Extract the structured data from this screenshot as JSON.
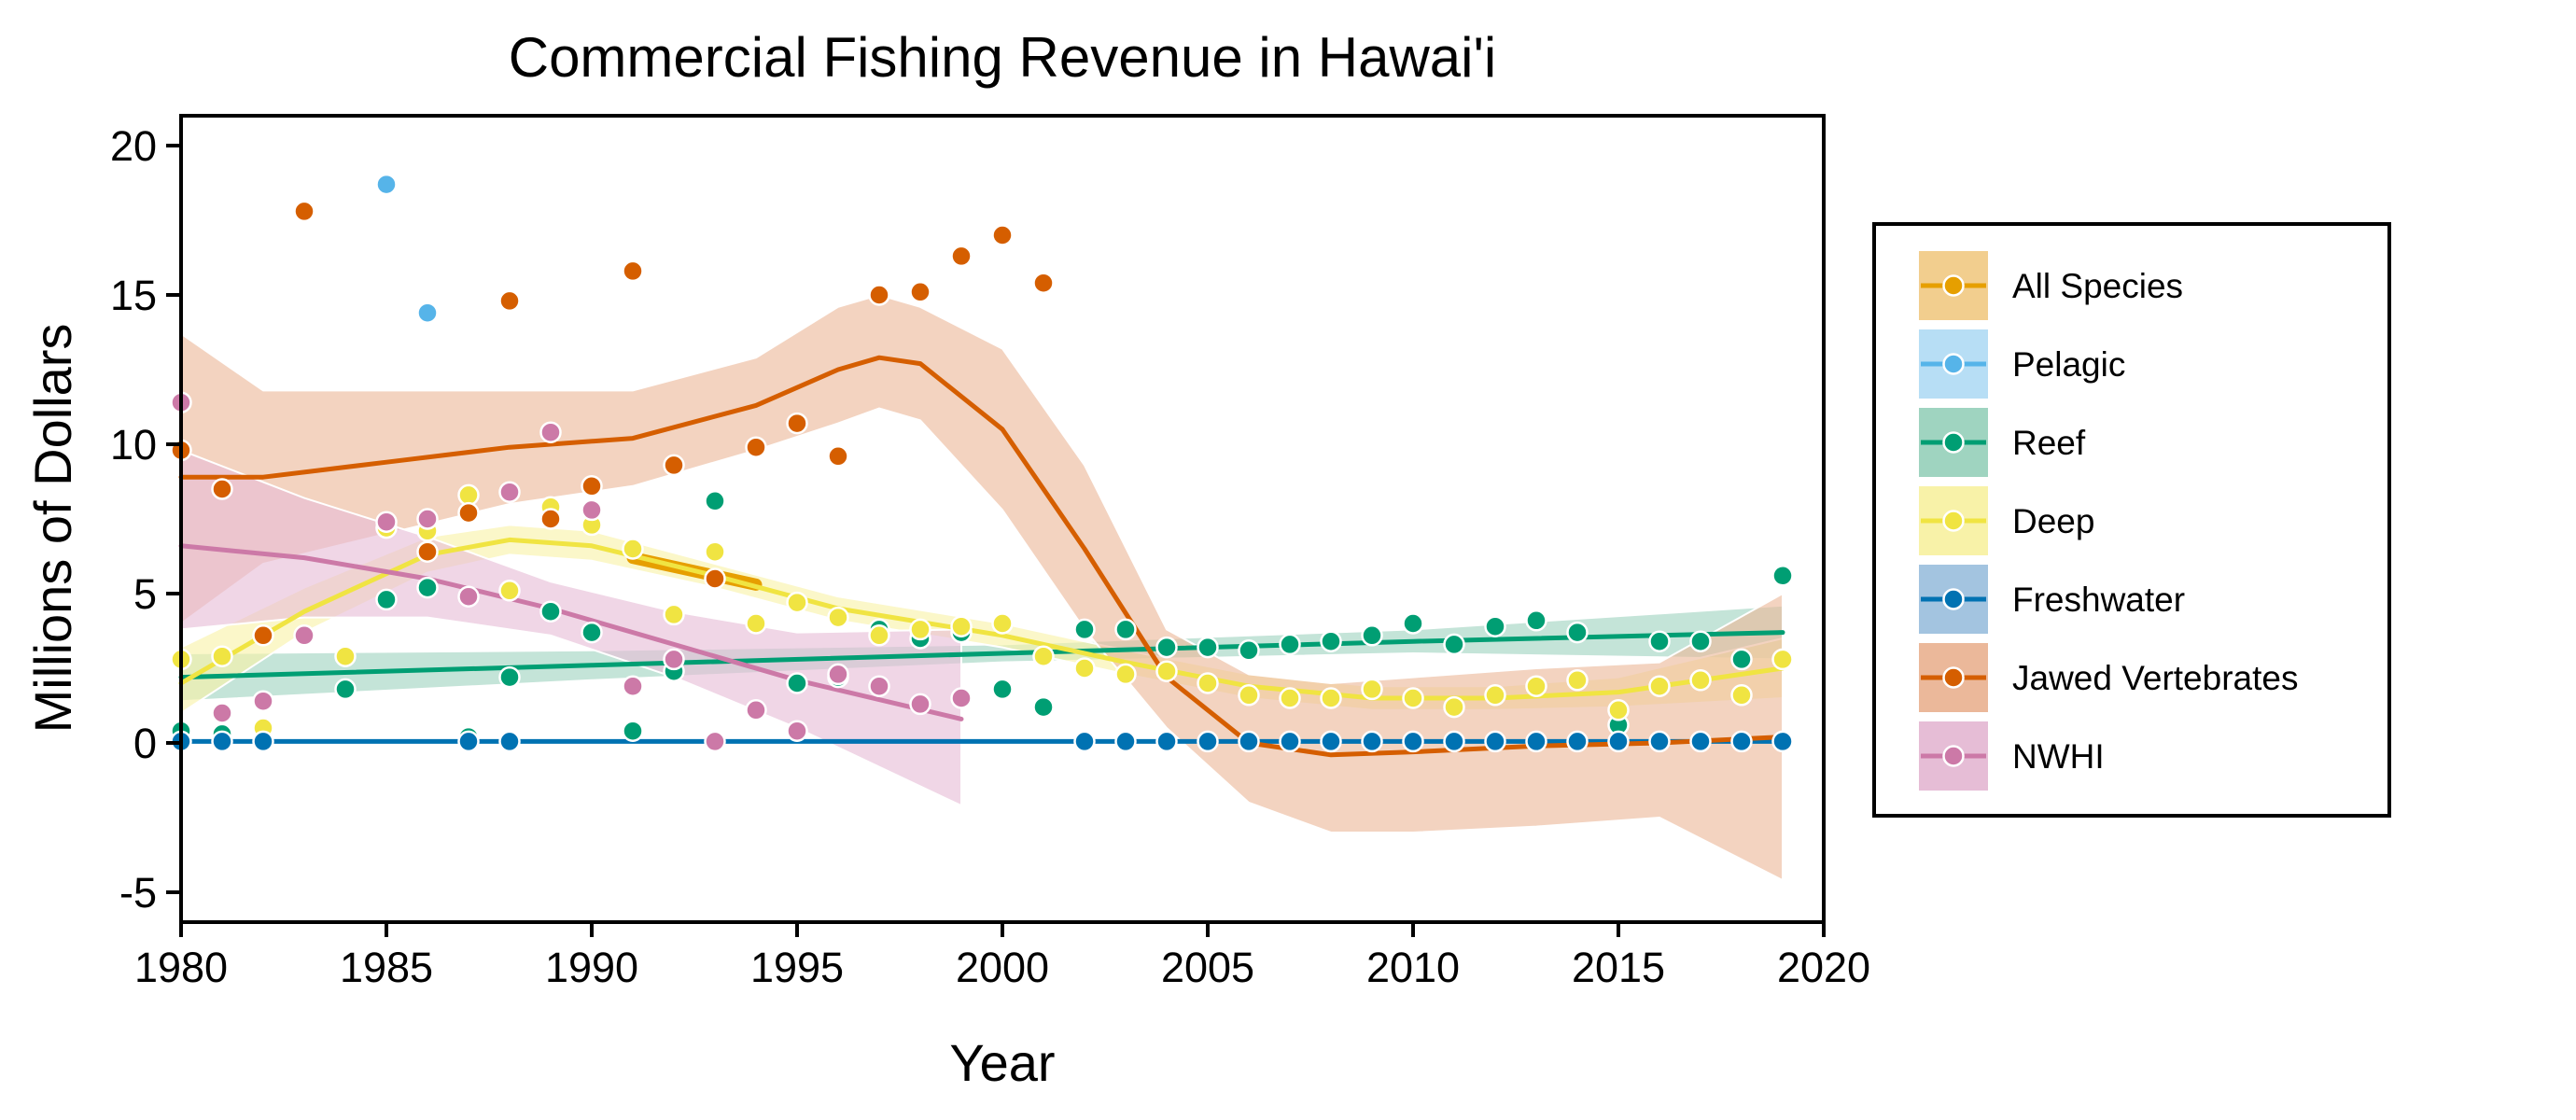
{
  "chart_data": {
    "type": "scatter",
    "title": "Commercial Fishing Revenue in Hawai'i",
    "xlabel": "Year",
    "ylabel": "Millions of Dollars",
    "xlim": [
      1980,
      2020
    ],
    "ylim": [
      -6,
      21
    ],
    "xticks": [
      1980,
      1985,
      1990,
      1995,
      2000,
      2005,
      2010,
      2015,
      2020
    ],
    "yticks": [
      -5,
      0,
      5,
      10,
      15,
      20
    ],
    "grid": false,
    "legend_position": "right",
    "series": [
      {
        "name": "All Species",
        "color": "#E69F00",
        "band_color": "#F2CE8E",
        "points": [],
        "fit": [
          [
            1991,
            6.2
          ],
          [
            1994,
            5.3
          ]
        ],
        "band": [
          [
            1991,
            6.2,
            6.2
          ],
          [
            1994,
            5.3,
            5.3
          ]
        ]
      },
      {
        "name": "Pelagic",
        "color": "#56B4E9",
        "band_color": "#B7DEF5",
        "points": [
          [
            1985,
            18.7
          ],
          [
            1986,
            14.4
          ]
        ],
        "fit": [],
        "band": []
      },
      {
        "name": "Reef",
        "color": "#009E73",
        "band_color": "#9FD4C0",
        "points": [
          [
            1980,
            0.4
          ],
          [
            1981,
            0.3
          ],
          [
            1984,
            1.8
          ],
          [
            1985,
            4.8
          ],
          [
            1986,
            5.2
          ],
          [
            1987,
            0.2
          ],
          [
            1988,
            2.2
          ],
          [
            1989,
            4.4
          ],
          [
            1990,
            3.7
          ],
          [
            1991,
            0.4
          ],
          [
            1992,
            2.4
          ],
          [
            1993,
            8.1
          ],
          [
            1995,
            2.0
          ],
          [
            1996,
            2.2
          ],
          [
            1997,
            3.8
          ],
          [
            1998,
            3.5
          ],
          [
            1999,
            3.7
          ],
          [
            2000,
            1.8
          ],
          [
            2001,
            1.2
          ],
          [
            2002,
            3.8
          ],
          [
            2003,
            3.8
          ],
          [
            2004,
            3.2
          ],
          [
            2005,
            3.2
          ],
          [
            2006,
            3.1
          ],
          [
            2007,
            3.3
          ],
          [
            2008,
            3.4
          ],
          [
            2009,
            3.6
          ],
          [
            2010,
            4.0
          ],
          [
            2011,
            3.3
          ],
          [
            2012,
            3.9
          ],
          [
            2013,
            4.1
          ],
          [
            2014,
            3.7
          ],
          [
            2015,
            0.6
          ],
          [
            2016,
            3.4
          ],
          [
            2017,
            3.4
          ],
          [
            2018,
            2.8
          ],
          [
            2019,
            5.6
          ]
        ],
        "fit": [
          [
            1980,
            2.2
          ],
          [
            1990,
            2.6
          ],
          [
            2000,
            3.0
          ],
          [
            2010,
            3.4
          ],
          [
            2019,
            3.7
          ]
        ],
        "band": [
          [
            1980,
            1.4,
            3.0
          ],
          [
            1990,
            2.1,
            3.1
          ],
          [
            2000,
            2.7,
            3.3
          ],
          [
            2010,
            3.0,
            3.8
          ],
          [
            2019,
            2.8,
            4.6
          ]
        ]
      },
      {
        "name": "Deep",
        "color": "#F0E442",
        "band_color": "#F8F2A8",
        "points": [
          [
            1980,
            2.8
          ],
          [
            1981,
            2.9
          ],
          [
            1982,
            0.5
          ],
          [
            1984,
            2.9
          ],
          [
            1985,
            7.2
          ],
          [
            1986,
            7.1
          ],
          [
            1987,
            8.3
          ],
          [
            1988,
            5.1
          ],
          [
            1989,
            7.9
          ],
          [
            1990,
            7.3
          ],
          [
            1991,
            6.5
          ],
          [
            1992,
            4.3
          ],
          [
            1993,
            6.4
          ],
          [
            1994,
            4.0
          ],
          [
            1995,
            4.7
          ],
          [
            1996,
            4.2
          ],
          [
            1997,
            3.6
          ],
          [
            1998,
            3.8
          ],
          [
            1999,
            3.9
          ],
          [
            2000,
            4.0
          ],
          [
            2001,
            2.9
          ],
          [
            2002,
            2.5
          ],
          [
            2003,
            2.3
          ],
          [
            2004,
            2.4
          ],
          [
            2005,
            2.0
          ],
          [
            2006,
            1.6
          ],
          [
            2007,
            1.5
          ],
          [
            2008,
            1.5
          ],
          [
            2009,
            1.8
          ],
          [
            2010,
            1.5
          ],
          [
            2011,
            1.2
          ],
          [
            2012,
            1.6
          ],
          [
            2013,
            1.9
          ],
          [
            2014,
            2.1
          ],
          [
            2015,
            1.1
          ],
          [
            2016,
            1.9
          ],
          [
            2017,
            2.1
          ],
          [
            2018,
            1.6
          ],
          [
            2019,
            2.8
          ]
        ],
        "fit": [
          [
            1980,
            2.0
          ],
          [
            1983,
            4.4
          ],
          [
            1986,
            6.3
          ],
          [
            1988,
            6.8
          ],
          [
            1990,
            6.6
          ],
          [
            1993,
            5.6
          ],
          [
            1996,
            4.5
          ],
          [
            2000,
            3.6
          ],
          [
            2003,
            2.7
          ],
          [
            2006,
            1.9
          ],
          [
            2009,
            1.5
          ],
          [
            2012,
            1.5
          ],
          [
            2015,
            1.7
          ],
          [
            2019,
            2.5
          ]
        ],
        "band": [
          [
            1980,
            1.0,
            3.2
          ],
          [
            1983,
            3.7,
            5.2
          ],
          [
            1986,
            5.7,
            6.9
          ],
          [
            1988,
            6.3,
            7.3
          ],
          [
            1990,
            6.1,
            7.1
          ],
          [
            1993,
            5.2,
            6.0
          ],
          [
            1996,
            4.1,
            4.9
          ],
          [
            2000,
            3.2,
            4.0
          ],
          [
            2003,
            2.3,
            3.1
          ],
          [
            2006,
            1.5,
            2.3
          ],
          [
            2009,
            1.1,
            1.9
          ],
          [
            2012,
            1.1,
            1.9
          ],
          [
            2015,
            1.2,
            2.2
          ],
          [
            2019,
            1.5,
            3.5
          ]
        ]
      },
      {
        "name": "Freshwater",
        "color": "#0072B2",
        "band_color": "#A3C4E0",
        "points": [
          [
            1980,
            0.05
          ],
          [
            1981,
            0.05
          ],
          [
            1982,
            0.05
          ],
          [
            1987,
            0.05
          ],
          [
            1988,
            0.05
          ],
          [
            2002,
            0.05
          ],
          [
            2003,
            0.05
          ],
          [
            2004,
            0.05
          ],
          [
            2005,
            0.05
          ],
          [
            2006,
            0.05
          ],
          [
            2007,
            0.05
          ],
          [
            2008,
            0.05
          ],
          [
            2009,
            0.05
          ],
          [
            2010,
            0.05
          ],
          [
            2011,
            0.05
          ],
          [
            2012,
            0.05
          ],
          [
            2013,
            0.05
          ],
          [
            2014,
            0.05
          ],
          [
            2015,
            0.05
          ],
          [
            2016,
            0.05
          ],
          [
            2017,
            0.05
          ],
          [
            2018,
            0.05
          ],
          [
            2019,
            0.05
          ]
        ],
        "fit": [
          [
            1980,
            0.05
          ],
          [
            2019,
            0.05
          ]
        ],
        "band": []
      },
      {
        "name": "Jawed Vertebrates",
        "color": "#D55E00",
        "band_color": "#EBB89A",
        "points": [
          [
            1980,
            9.8
          ],
          [
            1981,
            8.5
          ],
          [
            1982,
            3.6
          ],
          [
            1983,
            17.8
          ],
          [
            1986,
            6.4
          ],
          [
            1987,
            7.7
          ],
          [
            1988,
            14.8
          ],
          [
            1989,
            7.5
          ],
          [
            1990,
            8.6
          ],
          [
            1991,
            15.8
          ],
          [
            1992,
            9.3
          ],
          [
            1993,
            5.5
          ],
          [
            1994,
            9.9
          ],
          [
            1995,
            10.7
          ],
          [
            1996,
            9.6
          ],
          [
            1997,
            15.0
          ],
          [
            1998,
            15.1
          ],
          [
            1999,
            16.3
          ],
          [
            2000,
            17.0
          ],
          [
            2001,
            15.4
          ]
        ],
        "fit": [
          [
            1980,
            8.9
          ],
          [
            1982,
            8.9
          ],
          [
            1985,
            9.4
          ],
          [
            1988,
            9.9
          ],
          [
            1991,
            10.2
          ],
          [
            1994,
            11.3
          ],
          [
            1996,
            12.5
          ],
          [
            1997,
            12.9
          ],
          [
            1998,
            12.7
          ],
          [
            2000,
            10.5
          ],
          [
            2002,
            6.5
          ],
          [
            2004,
            2.2
          ],
          [
            2006,
            0.0
          ],
          [
            2008,
            -0.4
          ],
          [
            2010,
            -0.3
          ],
          [
            2013,
            -0.1
          ],
          [
            2016,
            0.0
          ],
          [
            2019,
            0.2
          ]
        ],
        "band": [
          [
            1980,
            4.0,
            13.7
          ],
          [
            1982,
            6.0,
            11.8
          ],
          [
            1985,
            7.0,
            11.8
          ],
          [
            1988,
            8.0,
            11.8
          ],
          [
            1991,
            8.6,
            11.8
          ],
          [
            1994,
            9.8,
            12.9
          ],
          [
            1996,
            10.7,
            14.6
          ],
          [
            1997,
            11.2,
            15.0
          ],
          [
            1998,
            10.8,
            14.6
          ],
          [
            2000,
            7.8,
            13.2
          ],
          [
            2002,
            3.8,
            9.3
          ],
          [
            2004,
            0.5,
            3.8
          ],
          [
            2006,
            -2.0,
            2.3
          ],
          [
            2008,
            -3.0,
            2.0
          ],
          [
            2010,
            -3.0,
            2.2
          ],
          [
            2013,
            -2.8,
            2.5
          ],
          [
            2016,
            -2.5,
            2.7
          ],
          [
            2019,
            -4.6,
            5.0
          ]
        ]
      },
      {
        "name": "NWHI",
        "color": "#CC79A7",
        "band_color": "#E6BDD6",
        "points": [
          [
            1980,
            11.4
          ],
          [
            1981,
            1.0
          ],
          [
            1982,
            1.4
          ],
          [
            1983,
            3.6
          ],
          [
            1985,
            7.4
          ],
          [
            1986,
            7.5
          ],
          [
            1987,
            4.9
          ],
          [
            1988,
            8.4
          ],
          [
            1989,
            10.4
          ],
          [
            1990,
            7.8
          ],
          [
            1991,
            1.9
          ],
          [
            1992,
            2.8
          ],
          [
            1993,
            0.05
          ],
          [
            1994,
            1.1
          ],
          [
            1995,
            0.4
          ],
          [
            1996,
            2.3
          ],
          [
            1997,
            1.9
          ],
          [
            1998,
            1.3
          ],
          [
            1999,
            1.5
          ]
        ],
        "fit": [
          [
            1980,
            6.6
          ],
          [
            1983,
            6.2
          ],
          [
            1986,
            5.5
          ],
          [
            1989,
            4.5
          ],
          [
            1992,
            3.3
          ],
          [
            1995,
            2.1
          ],
          [
            1999,
            0.8
          ]
        ],
        "band": [
          [
            1980,
            3.8,
            9.8
          ],
          [
            1983,
            4.2,
            8.2
          ],
          [
            1986,
            4.2,
            6.9
          ],
          [
            1989,
            3.6,
            5.4
          ],
          [
            1992,
            2.2,
            4.4
          ],
          [
            1995,
            0.5,
            3.7
          ],
          [
            1999,
            -2.1,
            3.8
          ]
        ]
      }
    ]
  }
}
